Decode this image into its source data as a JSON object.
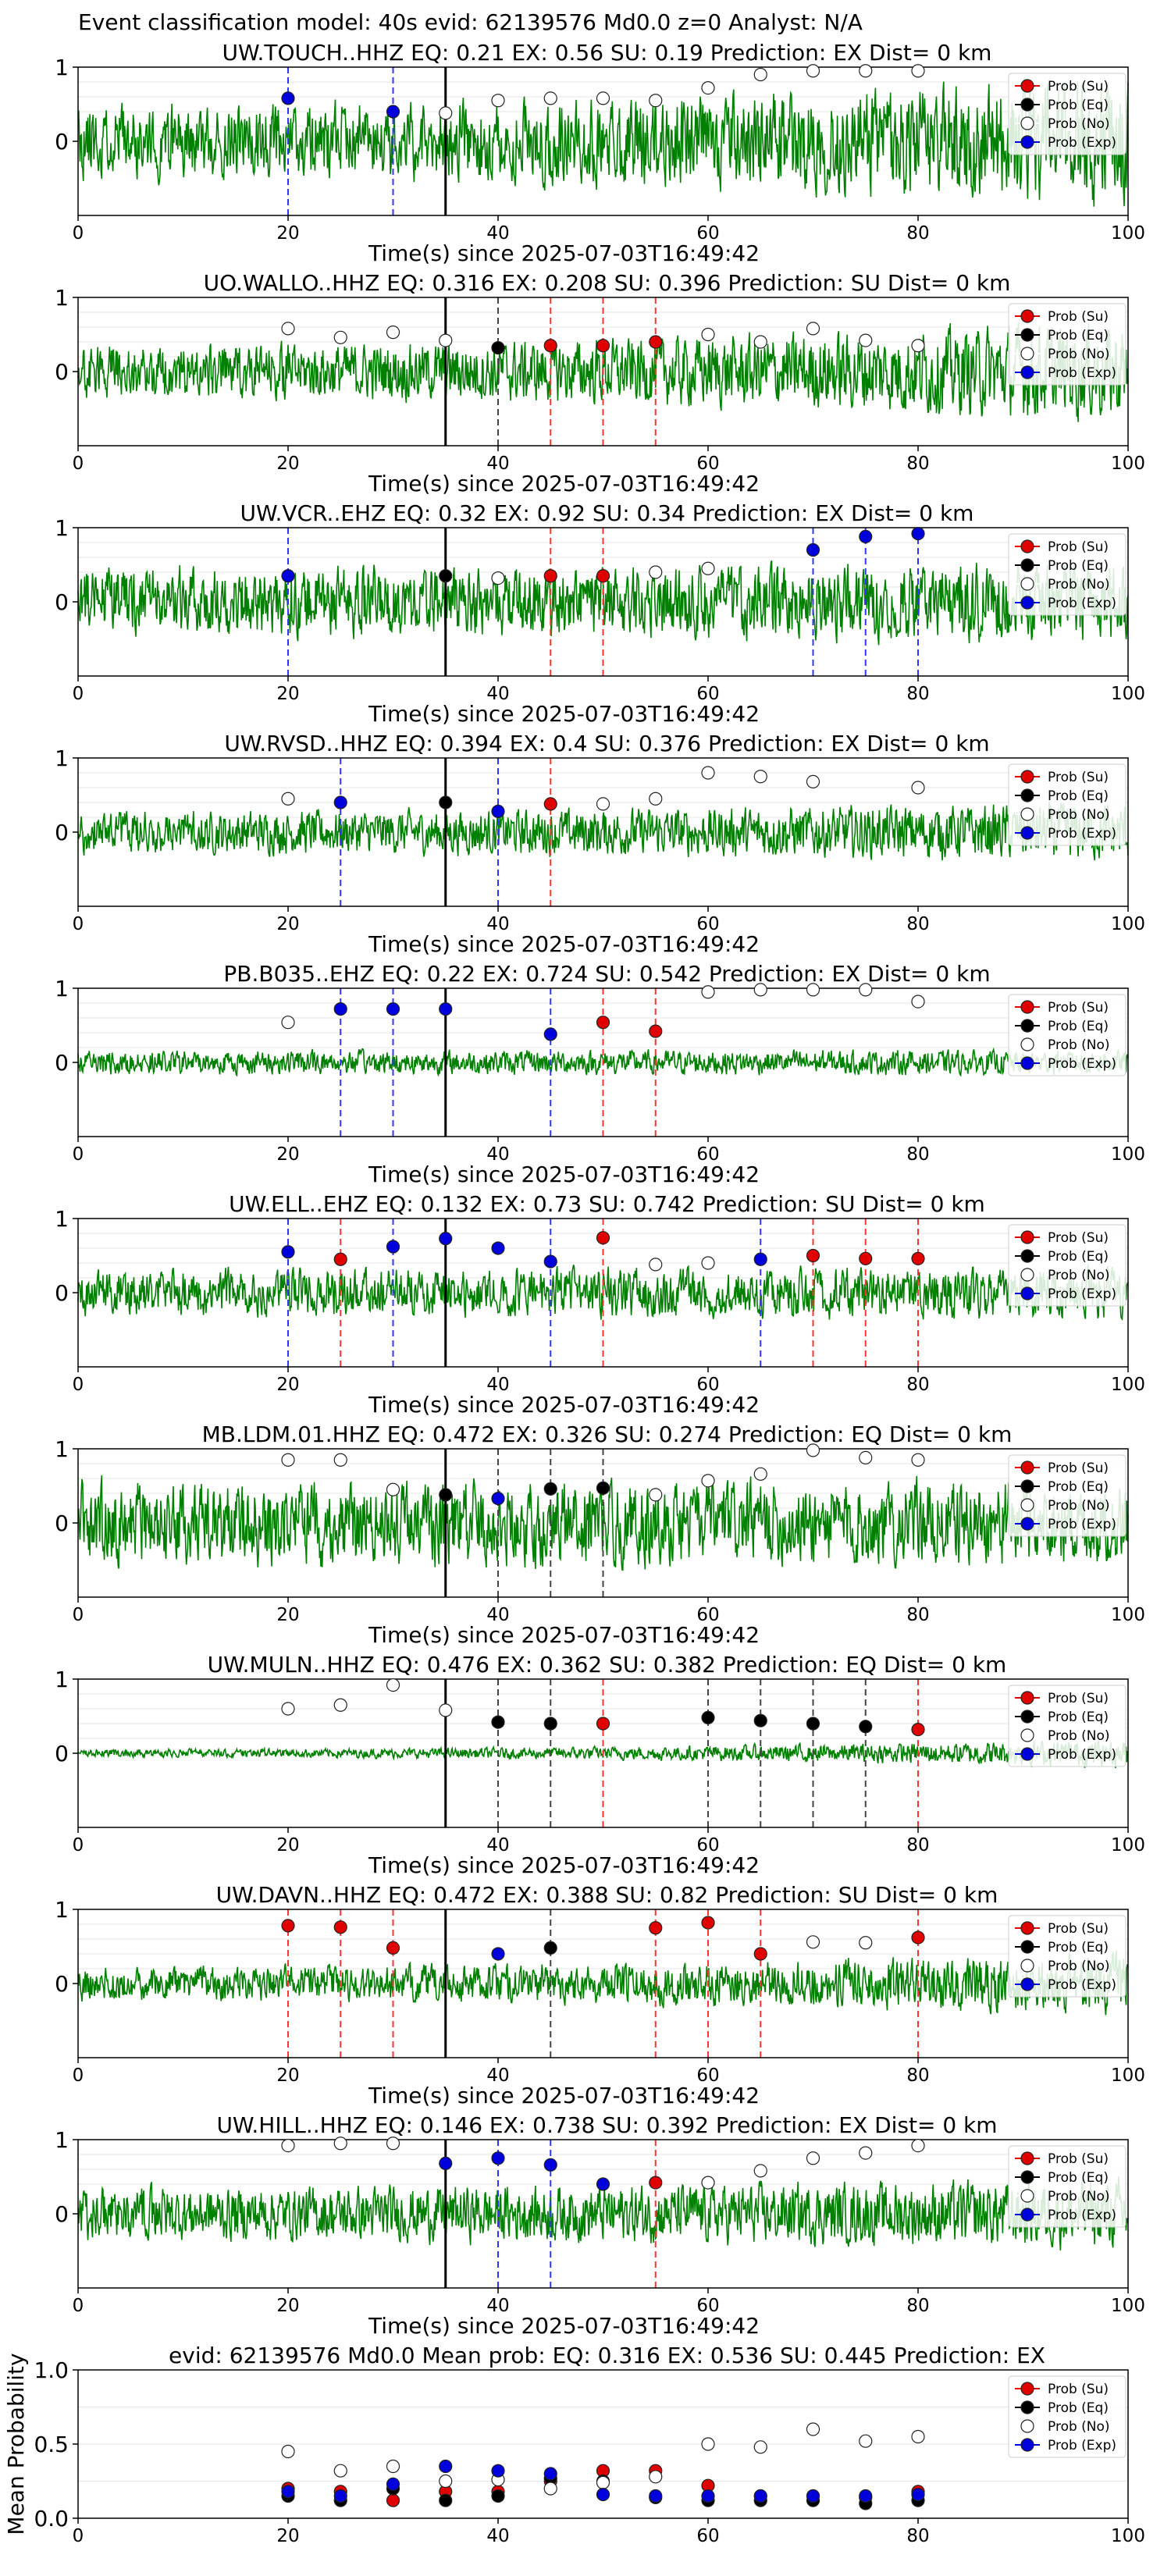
{
  "figure": {
    "suptitle": "Event classification model: 40s evid: 62139576 Md0.0 z=0 Analyst: N/A",
    "xlabel": "Time(s) since 2025-07-03T16:49:42",
    "legend": [
      "Prob (Su)",
      "Prob (Eq)",
      "Prob (No)",
      "Prob (Exp)"
    ]
  },
  "colors": {
    "su": "#e00000",
    "eq": "#000000",
    "no": "#ffffff",
    "exp": "#0000dd",
    "trace": "#008000",
    "su_line": "#ff3333",
    "eq_line": "#444444",
    "exp_line": "#3333ff"
  },
  "chart_data": [
    {
      "type": "scatter",
      "title": "UW.TOUCH..HHZ  EQ: 0.21  EX: 0.56  SU: 0.19  Prediction: EX  Dist= 0 km",
      "xlim": [
        0,
        100
      ],
      "ylim": [
        -1,
        1
      ],
      "xticks": [
        0,
        20,
        40,
        60,
        80,
        100
      ],
      "yticks": [
        0,
        1
      ],
      "vline": 35,
      "amp": 0.55,
      "grow": 1.7,
      "seed": 11,
      "points": {
        "su": [],
        "eq": [],
        "no": [
          [
            35,
            0.38
          ],
          [
            40,
            0.55
          ],
          [
            45,
            0.58
          ],
          [
            50,
            0.58
          ],
          [
            55,
            0.55
          ],
          [
            60,
            0.72
          ],
          [
            65,
            0.9
          ],
          [
            70,
            0.95
          ],
          [
            75,
            0.95
          ],
          [
            80,
            0.95
          ]
        ],
        "exp": [
          [
            20,
            0.58
          ],
          [
            30,
            0.4
          ]
        ]
      },
      "lines": {
        "su": [],
        "eq": [],
        "exp": [
          20,
          30
        ]
      }
    },
    {
      "type": "scatter",
      "title": "UO.WALLO..HHZ   EQ: 0.316  EX: 0.208  SU: 0.396   Prediction: SU    Dist= 0 km",
      "xlim": [
        0,
        100
      ],
      "ylim": [
        -1,
        1
      ],
      "xticks": [
        0,
        20,
        40,
        60,
        80,
        100
      ],
      "yticks": [
        0,
        1
      ],
      "vline": 35,
      "amp": 0.4,
      "grow": 1.9,
      "seed": 23,
      "points": {
        "su": [
          [
            45,
            0.35
          ],
          [
            50,
            0.35
          ],
          [
            55,
            0.4
          ]
        ],
        "eq": [
          [
            40,
            0.32
          ]
        ],
        "no": [
          [
            20,
            0.58
          ],
          [
            25,
            0.46
          ],
          [
            30,
            0.53
          ],
          [
            35,
            0.42
          ],
          [
            60,
            0.5
          ],
          [
            65,
            0.4
          ],
          [
            70,
            0.58
          ],
          [
            75,
            0.42
          ],
          [
            80,
            0.35
          ]
        ],
        "exp": []
      },
      "lines": {
        "su": [
          45,
          50,
          55
        ],
        "eq": [
          40
        ],
        "exp": []
      }
    },
    {
      "type": "scatter",
      "title": "UW.VCR..EHZ   EQ: 0.32  EX: 0.92  SU: 0.34   Prediction: EX    Dist= 0 km",
      "xlim": [
        0,
        100
      ],
      "ylim": [
        -1,
        1
      ],
      "xticks": [
        0,
        20,
        40,
        60,
        80,
        100
      ],
      "yticks": [
        0,
        1
      ],
      "vline": 35,
      "amp": 0.5,
      "grow": 1.2,
      "seed": 37,
      "points": {
        "su": [
          [
            45,
            0.35
          ],
          [
            50,
            0.35
          ]
        ],
        "eq": [
          [
            35,
            0.35
          ]
        ],
        "no": [
          [
            40,
            0.32
          ],
          [
            55,
            0.4
          ],
          [
            60,
            0.45
          ]
        ],
        "exp": [
          [
            20,
            0.35
          ],
          [
            70,
            0.7
          ],
          [
            75,
            0.88
          ],
          [
            80,
            0.92
          ]
        ]
      },
      "lines": {
        "su": [
          45,
          50
        ],
        "eq": [],
        "exp": [
          20,
          70,
          75,
          80
        ]
      }
    },
    {
      "type": "scatter",
      "title": "UW.RVSD..HHZ   EQ: 0.394  EX: 0.4  SU: 0.376   Prediction: EX    Dist= 0 km",
      "xlim": [
        0,
        100
      ],
      "ylim": [
        -1,
        1
      ],
      "xticks": [
        0,
        20,
        40,
        60,
        80,
        100
      ],
      "yticks": [
        0,
        1
      ],
      "vline": 35,
      "amp": 0.32,
      "grow": 1.4,
      "seed": 41,
      "points": {
        "su": [
          [
            45,
            0.38
          ]
        ],
        "eq": [
          [
            35,
            0.4
          ]
        ],
        "no": [
          [
            20,
            0.45
          ],
          [
            50,
            0.38
          ],
          [
            55,
            0.45
          ],
          [
            60,
            0.8
          ],
          [
            65,
            0.75
          ],
          [
            70,
            0.68
          ],
          [
            80,
            0.6
          ]
        ],
        "exp": [
          [
            25,
            0.4
          ],
          [
            40,
            0.28
          ]
        ]
      },
      "lines": {
        "su": [
          45
        ],
        "eq": [],
        "exp": [
          25,
          40
        ]
      }
    },
    {
      "type": "scatter",
      "title": "PB.B035..EHZ   EQ: 0.22  EX: 0.724  SU: 0.542   Prediction: EX    Dist= 0 km",
      "xlim": [
        0,
        100
      ],
      "ylim": [
        -1,
        1
      ],
      "xticks": [
        0,
        20,
        40,
        60,
        80,
        100
      ],
      "yticks": [
        0,
        1
      ],
      "vline": 35,
      "amp": 0.18,
      "grow": 1.0,
      "seed": 53,
      "points": {
        "su": [
          [
            50,
            0.54
          ],
          [
            55,
            0.42
          ]
        ],
        "eq": [],
        "no": [
          [
            20,
            0.54
          ],
          [
            60,
            0.95
          ],
          [
            65,
            0.98
          ],
          [
            70,
            0.98
          ],
          [
            75,
            0.98
          ],
          [
            80,
            0.82
          ]
        ],
        "exp": [
          [
            25,
            0.72
          ],
          [
            30,
            0.72
          ],
          [
            35,
            0.72
          ],
          [
            45,
            0.38
          ]
        ]
      },
      "lines": {
        "su": [
          50,
          55
        ],
        "eq": [],
        "exp": [
          25,
          30,
          45
        ]
      }
    },
    {
      "type": "scatter",
      "title": "UW.ELL..EHZ   EQ: 0.132  EX: 0.73  SU: 0.742   Prediction: SU    Dist= 0 km",
      "xlim": [
        0,
        100
      ],
      "ylim": [
        -1,
        1
      ],
      "xticks": [
        0,
        20,
        40,
        60,
        80,
        100
      ],
      "yticks": [
        0,
        1
      ],
      "vline": 35,
      "amp": 0.35,
      "grow": 1.1,
      "seed": 67,
      "points": {
        "su": [
          [
            25,
            0.45
          ],
          [
            50,
            0.74
          ],
          [
            70,
            0.5
          ],
          [
            75,
            0.46
          ],
          [
            80,
            0.46
          ]
        ],
        "eq": [],
        "no": [
          [
            55,
            0.38
          ],
          [
            60,
            0.4
          ]
        ],
        "exp": [
          [
            20,
            0.55
          ],
          [
            30,
            0.62
          ],
          [
            35,
            0.73
          ],
          [
            40,
            0.6
          ],
          [
            45,
            0.42
          ],
          [
            65,
            0.45
          ]
        ]
      },
      "lines": {
        "su": [
          25,
          50,
          70,
          75,
          80
        ],
        "eq": [],
        "exp": [
          20,
          30,
          45,
          65
        ]
      }
    },
    {
      "type": "scatter",
      "title": "MB.LDM.01.HHZ   EQ: 0.472  EX: 0.326  SU: 0.274   Prediction: EQ    Dist= 0 km",
      "xlim": [
        0,
        100
      ],
      "ylim": [
        -1,
        1
      ],
      "xticks": [
        0,
        20,
        40,
        60,
        80,
        100
      ],
      "yticks": [
        0,
        1
      ],
      "vline": 35,
      "amp": 0.62,
      "grow": 1.0,
      "seed": 79,
      "points": {
        "su": [],
        "eq": [
          [
            35,
            0.38
          ],
          [
            45,
            0.46
          ],
          [
            50,
            0.47
          ]
        ],
        "no": [
          [
            20,
            0.85
          ],
          [
            25,
            0.85
          ],
          [
            30,
            0.45
          ],
          [
            55,
            0.38
          ],
          [
            60,
            0.57
          ],
          [
            65,
            0.66
          ],
          [
            70,
            0.98
          ],
          [
            75,
            0.88
          ],
          [
            80,
            0.85
          ]
        ],
        "exp": [
          [
            40,
            0.33
          ]
        ]
      },
      "lines": {
        "su": [],
        "eq": [
          40,
          45,
          50
        ],
        "exp": []
      }
    },
    {
      "type": "scatter",
      "title": "UW.MULN..HHZ   EQ: 0.476  EX: 0.362  SU: 0.382   Prediction: EQ    Dist= 0 km",
      "xlim": [
        0,
        100
      ],
      "ylim": [
        -1,
        1
      ],
      "xticks": [
        0,
        20,
        40,
        60,
        80,
        100
      ],
      "yticks": [
        0,
        1
      ],
      "vline": 35,
      "amp": 0.06,
      "grow": 3.5,
      "seed": 83,
      "points": {
        "su": [
          [
            50,
            0.4
          ],
          [
            80,
            0.32
          ]
        ],
        "eq": [
          [
            40,
            0.42
          ],
          [
            45,
            0.4
          ],
          [
            60,
            0.48
          ],
          [
            65,
            0.44
          ],
          [
            70,
            0.4
          ],
          [
            75,
            0.36
          ]
        ],
        "no": [
          [
            20,
            0.6
          ],
          [
            25,
            0.65
          ],
          [
            30,
            0.92
          ],
          [
            35,
            0.58
          ]
        ],
        "exp": []
      },
      "lines": {
        "su": [
          50,
          80
        ],
        "eq": [
          40,
          45,
          60,
          65,
          70,
          75
        ],
        "exp": []
      }
    },
    {
      "type": "scatter",
      "title": "UW.DAVN..HHZ   EQ: 0.472  EX: 0.388  SU: 0.82   Prediction: SU    Dist= 0 km",
      "xlim": [
        0,
        100
      ],
      "ylim": [
        -1,
        1
      ],
      "xticks": [
        0,
        20,
        40,
        60,
        80,
        100
      ],
      "yticks": [
        0,
        1
      ],
      "vline": 35,
      "amp": 0.25,
      "grow": 1.8,
      "seed": 97,
      "points": {
        "su": [
          [
            20,
            0.78
          ],
          [
            25,
            0.76
          ],
          [
            30,
            0.48
          ],
          [
            55,
            0.75
          ],
          [
            60,
            0.82
          ],
          [
            65,
            0.4
          ],
          [
            80,
            0.62
          ]
        ],
        "eq": [
          [
            45,
            0.48
          ]
        ],
        "no": [
          [
            70,
            0.56
          ],
          [
            75,
            0.55
          ]
        ],
        "exp": [
          [
            40,
            0.4
          ]
        ]
      },
      "lines": {
        "su": [
          20,
          25,
          30,
          55,
          60,
          65,
          80
        ],
        "eq": [
          45
        ],
        "exp": []
      }
    },
    {
      "type": "scatter",
      "title": "UW.HILL..HHZ   EQ: 0.146  EX: 0.738  SU: 0.392   Prediction: EX    Dist= 0 km",
      "xlim": [
        0,
        100
      ],
      "ylim": [
        -1,
        1
      ],
      "xticks": [
        0,
        20,
        40,
        60,
        80,
        100
      ],
      "yticks": [
        0,
        1
      ],
      "vline": 35,
      "amp": 0.4,
      "grow": 1.3,
      "seed": 101,
      "points": {
        "su": [
          [
            55,
            0.42
          ]
        ],
        "eq": [],
        "no": [
          [
            20,
            0.92
          ],
          [
            25,
            0.95
          ],
          [
            30,
            0.95
          ],
          [
            60,
            0.42
          ],
          [
            65,
            0.58
          ],
          [
            70,
            0.75
          ],
          [
            75,
            0.82
          ],
          [
            80,
            0.92
          ]
        ],
        "exp": [
          [
            35,
            0.68
          ],
          [
            40,
            0.75
          ],
          [
            45,
            0.66
          ],
          [
            50,
            0.4
          ]
        ]
      },
      "lines": {
        "su": [
          55
        ],
        "eq": [],
        "exp": [
          40,
          45
        ]
      }
    },
    {
      "type": "scatter",
      "title": "evid: 62139576  Md0.0   Mean prob:   EQ: 0.316  EX: 0.536  SU: 0.445   Prediction: EX",
      "ylabel": "Mean Probability",
      "xlim": [
        0,
        100
      ],
      "ylim": [
        0,
        1
      ],
      "xticks": [
        0,
        20,
        40,
        60,
        80,
        100
      ],
      "yticks": [
        0.0,
        0.5,
        1.0
      ],
      "ytick_labels": [
        "0.0",
        "0.5",
        "1.0"
      ],
      "points": {
        "su": [
          [
            20,
            0.2
          ],
          [
            25,
            0.18
          ],
          [
            30,
            0.12
          ],
          [
            35,
            0.18
          ],
          [
            40,
            0.18
          ],
          [
            45,
            0.25
          ],
          [
            50,
            0.32
          ],
          [
            55,
            0.32
          ],
          [
            60,
            0.22
          ],
          [
            65,
            0.15
          ],
          [
            70,
            0.15
          ],
          [
            75,
            0.14
          ],
          [
            80,
            0.18
          ]
        ],
        "eq": [
          [
            20,
            0.15
          ],
          [
            25,
            0.12
          ],
          [
            30,
            0.2
          ],
          [
            35,
            0.12
          ],
          [
            40,
            0.15
          ],
          [
            45,
            0.27
          ],
          [
            50,
            0.25
          ],
          [
            55,
            0.14
          ],
          [
            60,
            0.12
          ],
          [
            65,
            0.12
          ],
          [
            70,
            0.12
          ],
          [
            75,
            0.1
          ],
          [
            80,
            0.12
          ]
        ],
        "no": [
          [
            20,
            0.45
          ],
          [
            25,
            0.32
          ],
          [
            30,
            0.35
          ],
          [
            35,
            0.25
          ],
          [
            40,
            0.26
          ],
          [
            45,
            0.2
          ],
          [
            50,
            0.24
          ],
          [
            55,
            0.28
          ],
          [
            60,
            0.5
          ],
          [
            65,
            0.48
          ],
          [
            70,
            0.6
          ],
          [
            75,
            0.52
          ],
          [
            80,
            0.55
          ]
        ],
        "exp": [
          [
            20,
            0.18
          ],
          [
            25,
            0.15
          ],
          [
            30,
            0.23
          ],
          [
            35,
            0.35
          ],
          [
            40,
            0.32
          ],
          [
            45,
            0.3
          ],
          [
            50,
            0.16
          ],
          [
            55,
            0.15
          ],
          [
            60,
            0.15
          ],
          [
            65,
            0.15
          ],
          [
            70,
            0.15
          ],
          [
            75,
            0.15
          ],
          [
            80,
            0.16
          ]
        ]
      }
    }
  ]
}
